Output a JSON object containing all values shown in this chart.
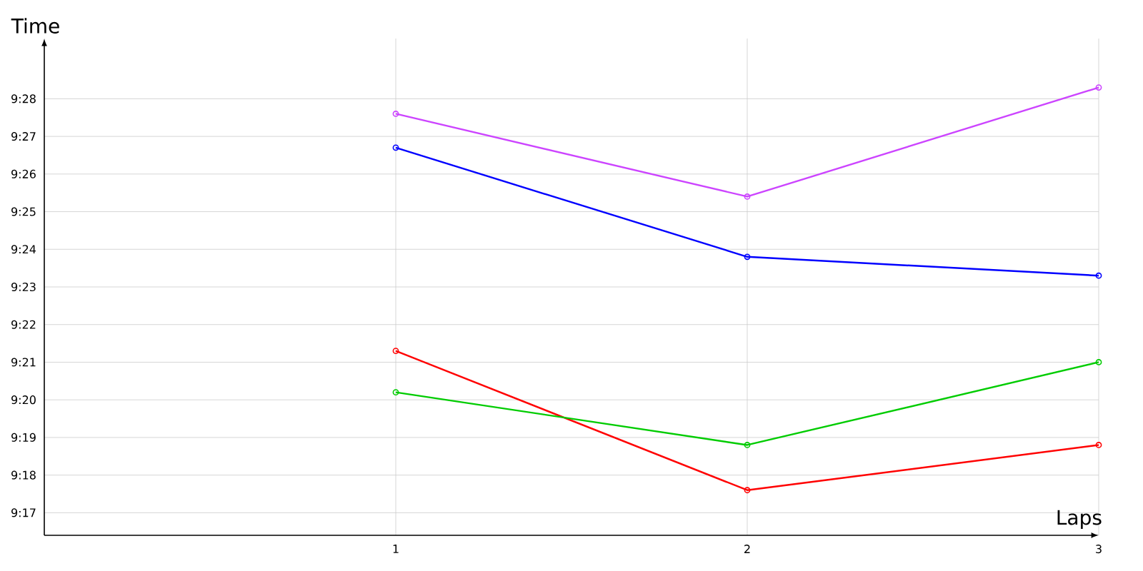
{
  "chart_data": {
    "type": "line",
    "xlabel": "Laps",
    "ylabel": "Time",
    "x": [
      1,
      2,
      3
    ],
    "series": [
      {
        "color": "#cc44ff",
        "values": [
          567.6,
          565.4,
          568.3
        ]
      },
      {
        "color": "#0000ff",
        "values": [
          566.7,
          563.8,
          563.3
        ]
      },
      {
        "color": "#ff0000",
        "values": [
          561.3,
          557.6,
          558.8
        ]
      },
      {
        "color": "#00cc00",
        "values": [
          560.2,
          558.8,
          561.0
        ]
      }
    ],
    "xlim": [
      0,
      3
    ],
    "xticks": [
      1,
      2,
      3
    ],
    "ylim": [
      556.4,
      569.6
    ],
    "yticks": [
      {
        "value": 557,
        "label": "9:17"
      },
      {
        "value": 558,
        "label": "9:18"
      },
      {
        "value": 559,
        "label": "9:19"
      },
      {
        "value": 560,
        "label": "9:20"
      },
      {
        "value": 561,
        "label": "9:21"
      },
      {
        "value": 562,
        "label": "9:22"
      },
      {
        "value": 563,
        "label": "9:23"
      },
      {
        "value": 564,
        "label": "9:24"
      },
      {
        "value": 565,
        "label": "9:25"
      },
      {
        "value": 566,
        "label": "9:26"
      },
      {
        "value": 567,
        "label": "9:27"
      },
      {
        "value": 568,
        "label": "9:28"
      }
    ],
    "grid": true,
    "marker": "circle",
    "line_style": "solid"
  }
}
